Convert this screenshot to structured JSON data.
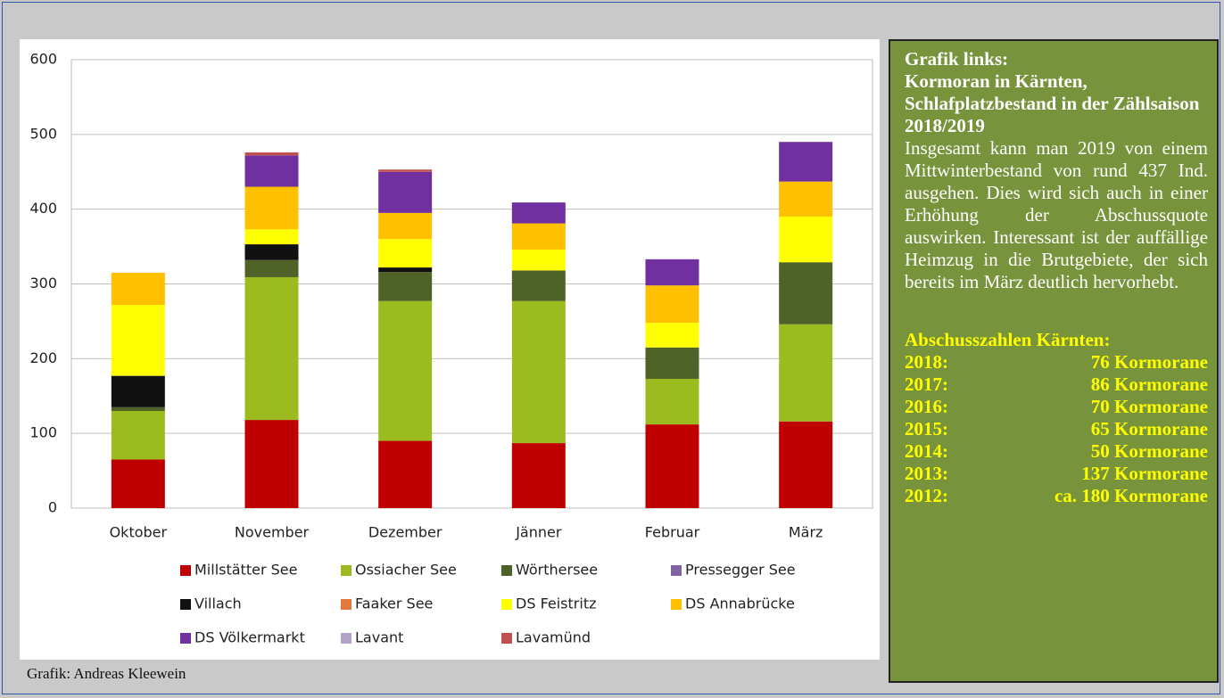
{
  "chart_data": {
    "type": "stacked_bar",
    "categories": [
      "Oktober",
      "November",
      "Dezember",
      "Jänner",
      "Februar",
      "März"
    ],
    "ylim": [
      0,
      600
    ],
    "yticks": [
      0,
      100,
      200,
      300,
      400,
      500,
      600
    ],
    "grid": true,
    "series": [
      {
        "name": "Millstätter See",
        "color": "#c00000",
        "values": [
          65,
          118,
          90,
          87,
          112,
          116
        ]
      },
      {
        "name": "Ossiacher See",
        "color": "#9bbb1e",
        "values": [
          65,
          191,
          187,
          190,
          61,
          130
        ]
      },
      {
        "name": "Wörthersee",
        "color": "#4f6228",
        "values": [
          5,
          23,
          39,
          41,
          42,
          83
        ]
      },
      {
        "name": "Pressegger See",
        "color": "#8064a2",
        "values": [
          0,
          0,
          0,
          0,
          0,
          0
        ]
      },
      {
        "name": "Villach",
        "color": "#111111",
        "values": [
          42,
          21,
          6,
          0,
          0,
          0
        ]
      },
      {
        "name": "Faaker See",
        "color": "#e3783c",
        "values": [
          0,
          0,
          0,
          0,
          0,
          0
        ]
      },
      {
        "name": "DS Feistritz",
        "color": "#ffff00",
        "values": [
          95,
          20,
          38,
          28,
          33,
          61
        ]
      },
      {
        "name": "DS Annabrücke",
        "color": "#ffc000",
        "values": [
          43,
          57,
          35,
          35,
          50,
          47
        ]
      },
      {
        "name": "DS Völkermarkt",
        "color": "#7030a0",
        "values": [
          0,
          42,
          55,
          28,
          35,
          53
        ]
      },
      {
        "name": "Lavant",
        "color": "#b3a2c7",
        "values": [
          0,
          0,
          0,
          0,
          0,
          0
        ]
      },
      {
        "name": "Lavamünd",
        "color": "#c0504d",
        "values": [
          0,
          4,
          3,
          0,
          0,
          0
        ]
      }
    ]
  },
  "credit": "Grafik: Andreas Kleewein",
  "sidebar": {
    "heading": [
      "Grafik links:",
      "Kormoran in Kärnten, Schlafplatzbestand in der Zählsaison 2018/2019"
    ],
    "body": "Insgesamt kann man 2019 von einem Mittwinterbe­stand von rund 437 Ind. ausgehen. Dies wird sich auch in einer Erhöhung der Abschussquote auswirken. Interessant ist der auffällige Heimzug in die Brutgebiete, der sich bereits im März deutlich hervorhebt.",
    "table_title": "Abschusszahlen Kärnten:",
    "rows": [
      {
        "year": "2018:",
        "count": "76 Kormorane"
      },
      {
        "year": "2017:",
        "count": "86 Kormorane"
      },
      {
        "year": "2016:",
        "count": "70 Kormorane"
      },
      {
        "year": "2015:",
        "count": "65 Kormorane"
      },
      {
        "year": "2014:",
        "count": "50 Kormorane"
      },
      {
        "year": "2013:",
        "count": "137 Kormorane"
      },
      {
        "year": "2012:",
        "count": "ca. 180 Kormorane"
      }
    ]
  }
}
